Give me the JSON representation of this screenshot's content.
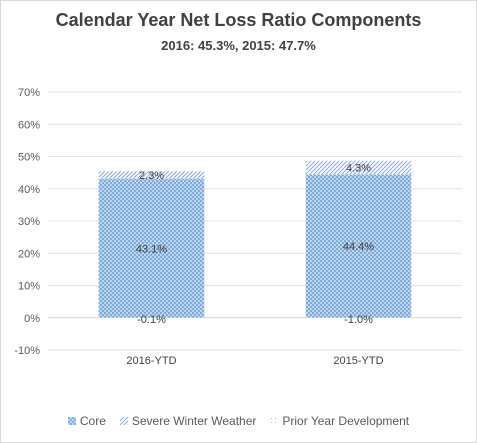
{
  "chart_data": {
    "type": "bar",
    "stacked": true,
    "title": "Calendar Year Net Loss Ratio Components",
    "subtitle": "2016: 45.3%, 2015: 47.7%",
    "categories": [
      "2016-YTD",
      "2015-YTD"
    ],
    "series": [
      {
        "name": "Core",
        "values": [
          43.1,
          44.4
        ],
        "labels": [
          "43.1%",
          "44.4%"
        ],
        "color": "#9dc3e6",
        "pattern": "dots"
      },
      {
        "name": "Severe Winter Weather",
        "values": [
          2.3,
          4.3
        ],
        "labels": [
          "2.3%",
          "4.3%"
        ],
        "color": "#8faadc",
        "pattern": "diagonal"
      },
      {
        "name": "Prior Year Development",
        "values": [
          -0.1,
          -1.0
        ],
        "labels": [
          "-0.1%",
          "-1.0%"
        ],
        "color": "#bdd7ee",
        "pattern": "sparse-dots"
      }
    ],
    "ylim": [
      -10,
      70
    ],
    "yticks": [
      -10,
      0,
      10,
      20,
      30,
      40,
      50,
      60,
      70
    ],
    "ytick_labels": [
      "-10%",
      "0%",
      "10%",
      "20%",
      "30%",
      "40%",
      "50%",
      "60%",
      "70%"
    ],
    "grid": true,
    "legend_position": "bottom",
    "xlabel": "",
    "ylabel": ""
  }
}
